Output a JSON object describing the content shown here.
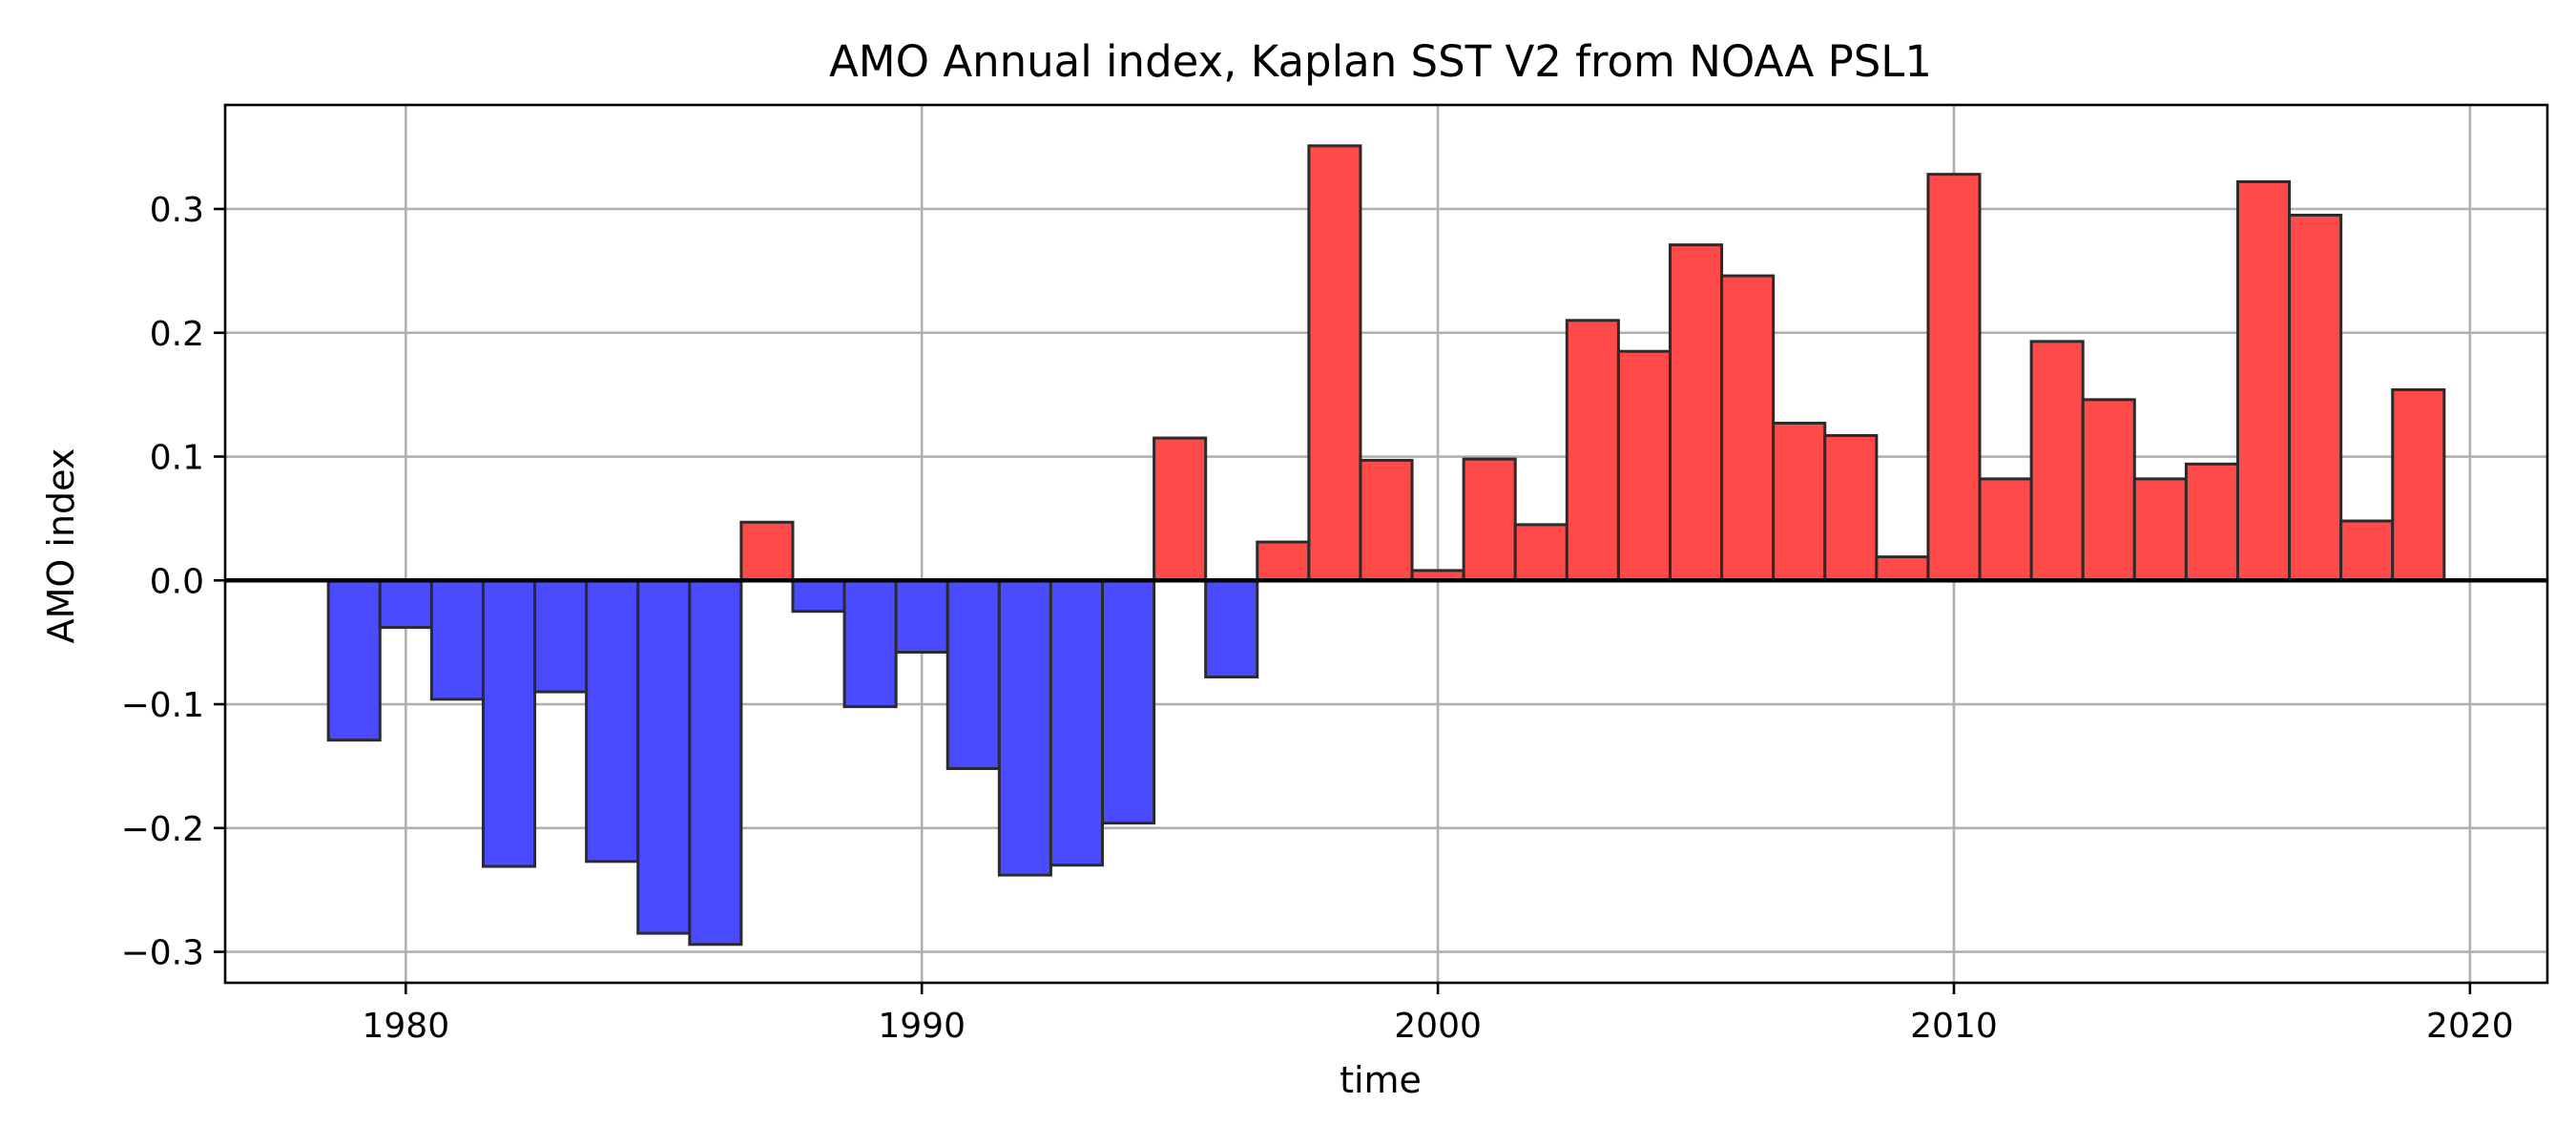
{
  "chart_data": {
    "type": "bar",
    "title": "AMO Annual index, Kaplan SST V2 from NOAA PSL1",
    "xlabel": "time",
    "ylabel": "AMO index",
    "x": [
      1979,
      1980,
      1981,
      1982,
      1983,
      1984,
      1985,
      1986,
      1987,
      1988,
      1989,
      1990,
      1991,
      1992,
      1993,
      1994,
      1995,
      1996,
      1997,
      1998,
      1999,
      2000,
      2001,
      2002,
      2003,
      2004,
      2005,
      2006,
      2007,
      2008,
      2009,
      2010,
      2011,
      2012,
      2013,
      2014,
      2015,
      2016,
      2017,
      2018,
      2019
    ],
    "values": [
      -0.129,
      -0.038,
      -0.096,
      -0.231,
      -0.09,
      -0.227,
      -0.285,
      -0.294,
      0.047,
      -0.025,
      -0.102,
      -0.058,
      -0.152,
      -0.238,
      -0.23,
      -0.196,
      0.115,
      -0.078,
      0.031,
      0.351,
      0.097,
      0.008,
      0.098,
      0.045,
      0.21,
      0.185,
      0.271,
      0.246,
      0.127,
      0.117,
      0.019,
      0.328,
      0.082,
      0.193,
      0.146,
      0.082,
      0.094,
      0.322,
      0.295,
      0.048,
      0.154
    ],
    "xlim": [
      1976.5,
      2021.5
    ],
    "ylim": [
      -0.325,
      0.384
    ],
    "xticks": [
      1980,
      1990,
      2000,
      2010,
      2020
    ],
    "yticks": [
      -0.3,
      -0.2,
      -0.1,
      0.0,
      0.1,
      0.2,
      0.3
    ],
    "ytick_labels": [
      "−0.3",
      "−0.2",
      "−0.1",
      "0.0",
      "0.1",
      "0.2",
      "0.3"
    ],
    "grid": true,
    "colors": {
      "positive": "#ff4a4a",
      "negative": "#4a4aff",
      "edge": "#2b2b2b",
      "zero_line": "#000000"
    }
  }
}
